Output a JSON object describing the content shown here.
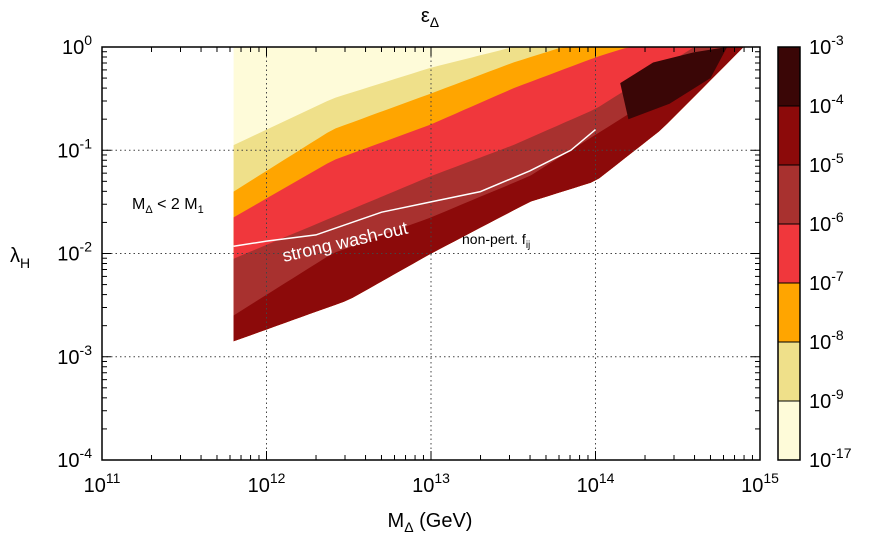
{
  "chart_data": {
    "type": "heatmap",
    "title": {
      "base": "ε",
      "sub": "Δ"
    },
    "xlabel": {
      "base": "M",
      "sub": "Δ",
      "suffix": " (GeV)"
    },
    "ylabel": {
      "base": "λ",
      "sub": "H"
    },
    "x_scale": "log",
    "y_scale": "log",
    "xlim": [
      100000000000.0,
      1000000000000000.0
    ],
    "ylim": [
      0.0001,
      1
    ],
    "grid": true,
    "x_ticks": [
      {
        "value": 100000000000.0,
        "base": "10",
        "exp": "11"
      },
      {
        "value": 1000000000000.0,
        "base": "10",
        "exp": "12"
      },
      {
        "value": 10000000000000.0,
        "base": "10",
        "exp": "13"
      },
      {
        "value": 100000000000000.0,
        "base": "10",
        "exp": "14"
      },
      {
        "value": 1000000000000000.0,
        "base": "10",
        "exp": "15"
      }
    ],
    "y_ticks": [
      {
        "value": 0.0001,
        "base": "10",
        "exp": "-4"
      },
      {
        "value": 0.001,
        "base": "10",
        "exp": "-3"
      },
      {
        "value": 0.01,
        "base": "10",
        "exp": "-2"
      },
      {
        "value": 0.1,
        "base": "10",
        "exp": "-1"
      },
      {
        "value": 1,
        "base": "10",
        "exp": "0"
      }
    ],
    "colorbar": {
      "position": "right",
      "levels": [
        {
          "base": "10",
          "exp": "-3"
        },
        {
          "base": "10",
          "exp": "-4"
        },
        {
          "base": "10",
          "exp": "-5"
        },
        {
          "base": "10",
          "exp": "-6"
        },
        {
          "base": "10",
          "exp": "-7"
        },
        {
          "base": "10",
          "exp": "-8"
        },
        {
          "base": "10",
          "exp": "-9"
        },
        {
          "base": "10",
          "exp": "-17"
        }
      ],
      "bands": [
        {
          "range": [
            "1e-4",
            "1e-3"
          ],
          "color": "#3a0606"
        },
        {
          "range": [
            "1e-5",
            "1e-4"
          ],
          "color": "#8c0a0a"
        },
        {
          "range": [
            "1e-6",
            "1e-5"
          ],
          "color": "#a8312f"
        },
        {
          "range": [
            "1e-7",
            "1e-6"
          ],
          "color": "#f0373c"
        },
        {
          "range": [
            "1e-8",
            "1e-7"
          ],
          "color": "#ffa500"
        },
        {
          "range": [
            "1e-9",
            "1e-8"
          ],
          "color": "#efe08a"
        },
        {
          "range": [
            "1e-17",
            "1e-9"
          ],
          "color": "#fefbd9"
        }
      ]
    },
    "region_boundaries": {
      "note": "log10(M) vs log10(lambda_H) boundaries of filled region",
      "kinematic_cut_logM": 11.8,
      "lower_edge": [
        [
          11.8,
          -2.85
        ],
        [
          12.5,
          -2.45
        ],
        [
          13.0,
          -2.0
        ],
        [
          13.6,
          -1.5
        ],
        [
          14.0,
          -1.3
        ],
        [
          14.4,
          -0.8
        ],
        [
          14.9,
          0.0
        ]
      ],
      "top_edge_logM": 14.9,
      "band_edges": [
        {
          "band": "1e-17..1e-9",
          "upper": [
            [
              11.8,
              0.0
            ],
            [
              14.9,
              0.0
            ]
          ]
        },
        {
          "band": "1e-9..1e-8",
          "upper": [
            [
              11.8,
              -0.95
            ],
            [
              12.4,
              -0.5
            ],
            [
              13.0,
              -0.2
            ],
            [
              13.5,
              0.0
            ]
          ]
        },
        {
          "band": "1e-8..1e-7",
          "upper": [
            [
              11.8,
              -1.4
            ],
            [
              12.4,
              -0.8
            ],
            [
              13.0,
              -0.45
            ],
            [
              13.5,
              -0.15
            ],
            [
              13.8,
              0.0
            ]
          ]
        },
        {
          "band": "1e-7..1e-6",
          "upper": [
            [
              11.8,
              -1.65
            ],
            [
              12.4,
              -1.1
            ],
            [
              13.0,
              -0.75
            ],
            [
              13.5,
              -0.4
            ],
            [
              14.0,
              -0.1
            ],
            [
              14.2,
              0.0
            ]
          ]
        },
        {
          "band": "1e-6..1e-5",
          "upper": [
            [
              11.8,
              -2.05
            ],
            [
              12.4,
              -1.65
            ],
            [
              13.0,
              -1.25
            ],
            [
              13.5,
              -0.95
            ],
            [
              14.0,
              -0.6
            ],
            [
              14.4,
              -0.2
            ],
            [
              14.6,
              0.0
            ]
          ]
        },
        {
          "band": "1e-5..1e-4",
          "upper": [
            [
              11.8,
              -2.6
            ],
            [
              12.4,
              -2.0
            ],
            [
              13.0,
              -1.65
            ],
            [
              13.6,
              -1.25
            ],
            [
              14.0,
              -0.85
            ],
            [
              14.5,
              -0.35
            ],
            [
              14.8,
              0.0
            ]
          ]
        }
      ],
      "darkest_blob": [
        [
          14.15,
          -0.35
        ],
        [
          14.35,
          -0.15
        ],
        [
          14.6,
          -0.05
        ],
        [
          14.8,
          0.0
        ],
        [
          14.7,
          -0.3
        ],
        [
          14.45,
          -0.55
        ],
        [
          14.2,
          -0.7
        ]
      ]
    },
    "white_curve": {
      "label": "strong wash-out",
      "points": [
        [
          11.8,
          -1.93
        ],
        [
          12.0,
          -1.88
        ],
        [
          12.3,
          -1.82
        ],
        [
          12.7,
          -1.6
        ],
        [
          13.0,
          -1.5
        ],
        [
          13.3,
          -1.4
        ],
        [
          13.6,
          -1.2
        ],
        [
          13.85,
          -1.0
        ],
        [
          14.0,
          -0.8
        ]
      ]
    },
    "annotations": [
      {
        "base": "M",
        "sub": "Δ",
        "rest": " < 2 M",
        "sub2": "1"
      },
      {
        "text": "strong wash-out"
      },
      {
        "base": "non-pert. f",
        "sub": "ij"
      }
    ]
  }
}
